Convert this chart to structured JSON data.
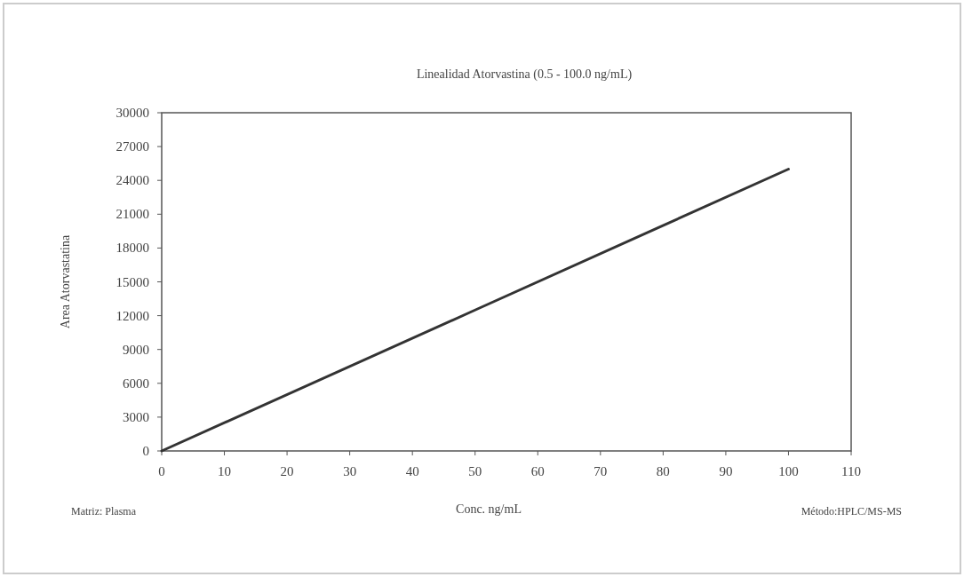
{
  "chart_data": {
    "type": "line",
    "title": "Linealidad Atorvastina (0.5 - 100.0 ng/mL)",
    "xlabel": "Conc. ng/mL",
    "ylabel": "Area Atorvastatina",
    "annotations": [
      "Matriz: Plasma",
      "Método:HPLC/MS-MS"
    ],
    "x": [
      0,
      50,
      100
    ],
    "series": [
      {
        "color": "#333333",
        "values": [
          0,
          12500,
          25000
        ]
      }
    ],
    "xlim": [
      0,
      110
    ],
    "xticks": [
      0,
      10,
      20,
      30,
      40,
      50,
      60,
      70,
      80,
      90,
      100,
      110
    ],
    "ylim": [
      0,
      30000
    ],
    "yticks": [
      0,
      3000,
      6000,
      9000,
      12000,
      15000,
      18000,
      21000,
      24000,
      27000,
      30000
    ],
    "grid": false,
    "marker": "none",
    "line_style": "solid"
  }
}
